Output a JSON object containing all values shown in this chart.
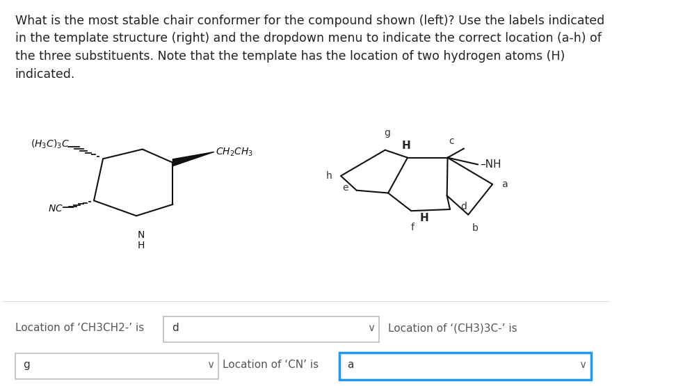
{
  "title_text": "What is the most stable chair conformer for the compound shown (left)? Use the labels indicated\nin the template structure (right) and the dropdown menu to indicate the correct location (a-h) of\nthe three substituents. Note that the template has the location of two hydrogen atoms (H)\nindicated.",
  "title_fontsize": 12.5,
  "bg_color": "#ffffff",
  "row1_label1": "Location of ‘CH3CH2-’ is",
  "row1_box1_text": "d",
  "row1_label2": "Location of ‘(CH3)3C-’ is",
  "row2_box1_text": "g",
  "row2_label": "Location of ‘CN’ is",
  "row2_box2_text": "a",
  "dropdown_char": "∨",
  "text_color": "#555555",
  "box_border_normal": "#aaaaaa",
  "box_border_active": "#2196F3",
  "ring_color": "#111111",
  "label_color": "#333333"
}
